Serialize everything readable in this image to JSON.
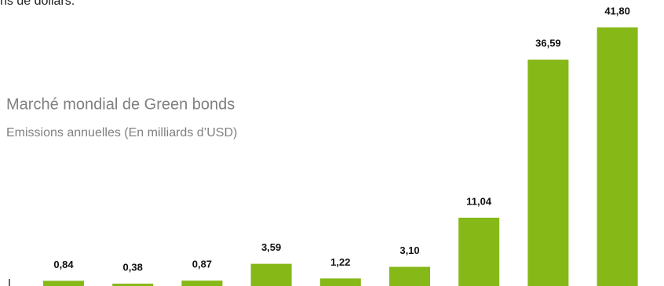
{
  "top_text": "ns de dollars.",
  "chart_data": {
    "type": "bar",
    "title": "Marché mondial de Green bonds",
    "subtitle": "Emissions annuelles (En milliards d’USD)",
    "values": [
      0.84,
      0.38,
      0.87,
      3.59,
      1.22,
      3.1,
      11.04,
      36.59,
      41.8
    ],
    "value_labels": [
      "0,84",
      "0,38",
      "0,87",
      "3,59",
      "1,22",
      "3,10",
      "11,04",
      "36,59",
      "41,80"
    ],
    "color": "#86b817"
  }
}
